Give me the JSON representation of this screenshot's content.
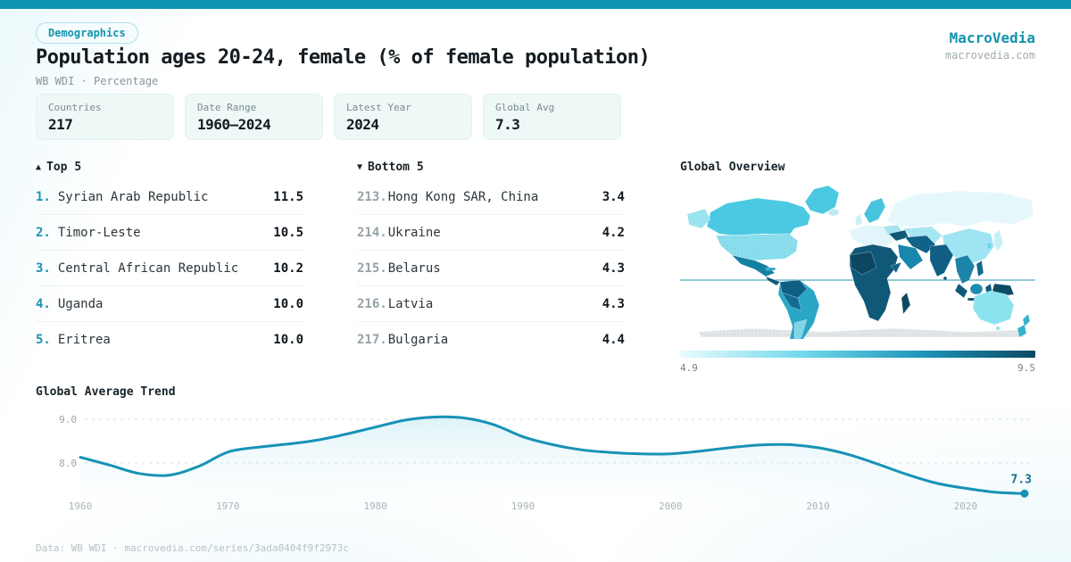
{
  "brand": {
    "name": "MacroVedia",
    "domain": "macrovedia.com"
  },
  "colors": {
    "topbar": "#0e93b1",
    "accent": "#1193ae",
    "line": "#1792b6",
    "scale_min_color": "#e9fbfe",
    "scale_max_color": "#0d4a63"
  },
  "header": {
    "badge": "Demographics",
    "title": "Population ages 20-24, female (% of female population)",
    "subtitle": "WB WDI · Percentage"
  },
  "stats": [
    {
      "label": "Countries",
      "value": "217"
    },
    {
      "label": "Date Range",
      "value": "1960—2024"
    },
    {
      "label": "Latest Year",
      "value": "2024"
    },
    {
      "label": "Global Avg",
      "value": "7.3"
    }
  ],
  "rankings": {
    "top": {
      "arrow": "▲",
      "heading": "Top 5",
      "items": [
        {
          "rank": "1.",
          "name": "Syrian Arab Republic",
          "value": "11.5"
        },
        {
          "rank": "2.",
          "name": "Timor-Leste",
          "value": "10.5"
        },
        {
          "rank": "3.",
          "name": "Central African Republic",
          "value": "10.2"
        },
        {
          "rank": "4.",
          "name": "Uganda",
          "value": "10.0"
        },
        {
          "rank": "5.",
          "name": "Eritrea",
          "value": "10.0"
        }
      ]
    },
    "bottom": {
      "arrow": "▼",
      "heading": "Bottom 5",
      "items": [
        {
          "rank": "213.",
          "name": "Hong Kong SAR, China",
          "value": "3.4"
        },
        {
          "rank": "214.",
          "name": "Ukraine",
          "value": "4.2"
        },
        {
          "rank": "215.",
          "name": "Belarus",
          "value": "4.3"
        },
        {
          "rank": "216.",
          "name": "Latvia",
          "value": "4.3"
        },
        {
          "rank": "217.",
          "name": "Bulgaria",
          "value": "4.4"
        }
      ]
    }
  },
  "map": {
    "heading": "Global Overview",
    "legend_min": "4.9",
    "legend_max": "9.5"
  },
  "trend": {
    "heading": "Global Average Trend"
  },
  "chart_data": [
    {
      "type": "line",
      "title": "Global Average Trend",
      "x": [
        1960,
        1962,
        1964,
        1966,
        1968,
        1970,
        1972,
        1974,
        1976,
        1978,
        1980,
        1982,
        1984,
        1986,
        1988,
        1990,
        1992,
        1994,
        1996,
        1998,
        2000,
        2002,
        2004,
        2006,
        2008,
        2010,
        2012,
        2014,
        2016,
        2018,
        2020,
        2022,
        2024
      ],
      "values": [
        8.13,
        7.95,
        7.76,
        7.72,
        7.92,
        8.25,
        8.36,
        8.43,
        8.52,
        8.66,
        8.82,
        8.98,
        9.05,
        9.03,
        8.88,
        8.6,
        8.42,
        8.3,
        8.24,
        8.21,
        8.21,
        8.27,
        8.35,
        8.41,
        8.42,
        8.35,
        8.2,
        7.98,
        7.74,
        7.54,
        7.42,
        7.33,
        7.3
      ],
      "xticks": [
        1960,
        1970,
        1980,
        1990,
        2000,
        2010,
        2020
      ],
      "yticks": [
        9.0,
        8.0
      ],
      "ytick_labels": [
        "9.0",
        "8.0"
      ],
      "xlim": [
        1960,
        2024
      ],
      "ylim": [
        7.0,
        9.3
      ],
      "grid": "dashed-horizontal",
      "legend_position": "none",
      "end_label": "7.3"
    },
    {
      "type": "heatmap",
      "subtype": "world-choropleth",
      "title": "Global Overview",
      "colorbar_range": [
        4.9,
        9.5
      ],
      "high_value_regions": "Africa, Middle East, South Asia, Central America, north-west South America, New Guinea",
      "mid_value_regions": "South America (Brazil), Mexico, Scandinavia, Canada, Greenland",
      "low_value_regions": "Europe, Russia, China, USA, Australia, Japan, Kazakhstan",
      "no_data_regions": "Antarctica"
    }
  ],
  "footer": {
    "text": "Data: WB WDI · macrovedia.com/series/3ada0404f9f2973c"
  }
}
